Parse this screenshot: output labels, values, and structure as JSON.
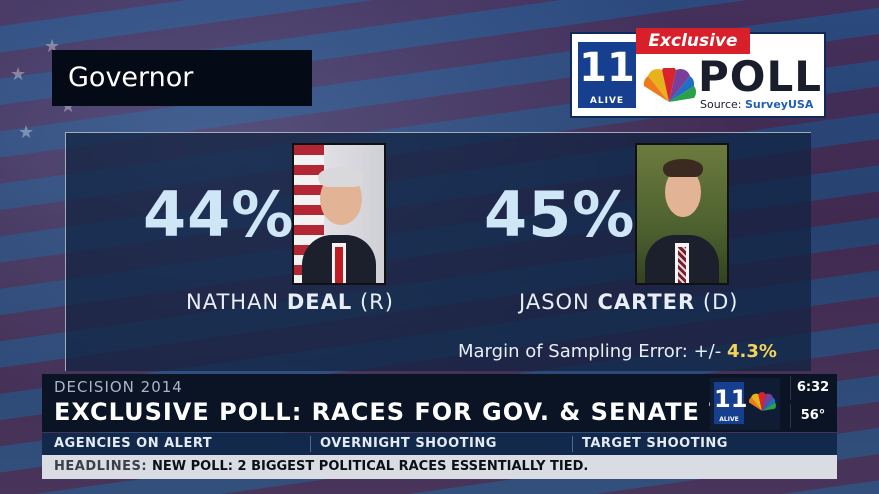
{
  "graphic": {
    "title": "Governor",
    "logo": {
      "station": "11",
      "station_sub": "ALIVE",
      "badge": "Exclusive",
      "word": "POLL",
      "source_label": "Source:",
      "source_name": "SurveyUSA"
    },
    "candidates": [
      {
        "percent": "44%",
        "first": "NATHAN",
        "last": "DEAL",
        "party": "(R)"
      },
      {
        "percent": "45%",
        "first": "JASON",
        "last": "CARTER",
        "party": "(D)"
      }
    ],
    "margin": {
      "label": "Margin of Sampling Error: +/-",
      "value": "4.3%"
    }
  },
  "ticker": {
    "kicker": "DECISION 2014",
    "headline": "EXCLUSIVE POLL: RACES FOR GOV. & SENATE TIED",
    "time": "6:32",
    "temperature": "56°",
    "station": "11",
    "station_sub": "ALIVE",
    "sub_items": [
      "AGENCIES ON ALERT",
      "OVERNIGHT SHOOTING",
      "TARGET SHOOTING"
    ],
    "headlines_label": "HEADLINES:",
    "headlines_text": "NEW POLL: 2 BIGGEST POLITICAL RACES ESSENTIALLY TIED."
  }
}
